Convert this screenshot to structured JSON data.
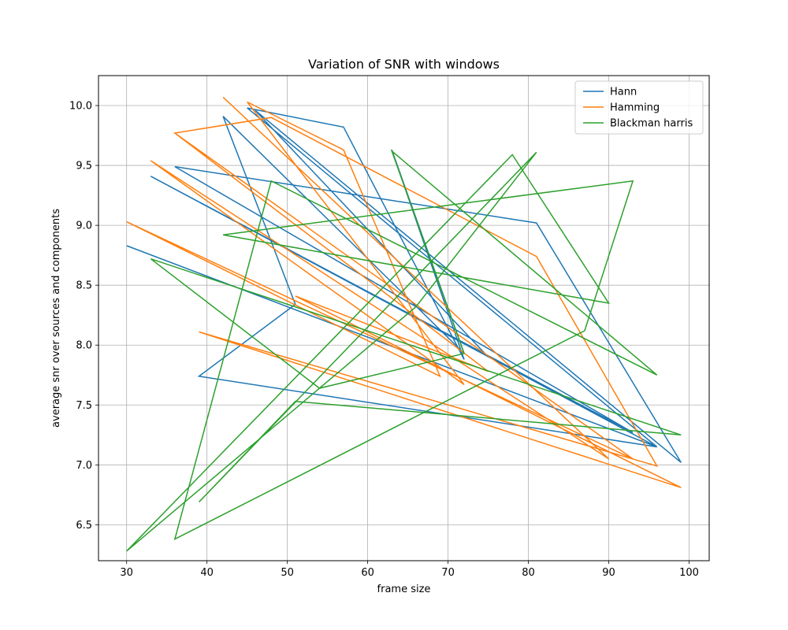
{
  "chart_data": {
    "type": "line",
    "title": "Variation of SNR with windows",
    "xlabel": "frame size",
    "ylabel": "average snr over sources and components",
    "xlim": [
      26.5,
      102.5
    ],
    "ylim": [
      6.2,
      10.25
    ],
    "xticks": [
      "30",
      "40",
      "50",
      "60",
      "70",
      "80",
      "90",
      "100"
    ],
    "yticks": [
      "6.5",
      "7.0",
      "7.5",
      "8.0",
      "8.5",
      "9.0",
      "9.5",
      "10.0"
    ],
    "grid": true,
    "legend_position": "top-right",
    "series": [
      {
        "name": "Hann",
        "color": "#1f77b4",
        "x": [
          30,
          96,
          45,
          57,
          72,
          63,
          72,
          42,
          51,
          39,
          96,
          33,
          93,
          36,
          81,
          99,
          46,
          75
        ],
        "y": [
          8.83,
          7.15,
          9.98,
          9.82,
          7.88,
          9.63,
          7.93,
          9.91,
          8.34,
          7.74,
          7.15,
          9.41,
          7.27,
          9.49,
          9.02,
          7.02,
          9.96,
          7.9
        ]
      },
      {
        "name": "Hamming",
        "color": "#ff7f0e",
        "x": [
          42,
          90,
          33,
          72,
          45,
          57,
          69,
          30,
          93,
          36,
          48,
          81,
          96,
          39,
          99,
          51,
          75,
          36
        ],
        "y": [
          10.07,
          7.05,
          9.54,
          7.67,
          10.03,
          9.63,
          7.74,
          9.03,
          7.05,
          9.77,
          9.9,
          8.74,
          6.99,
          8.11,
          6.81,
          8.41,
          7.78,
          9.77
        ]
      },
      {
        "name": "Blackman harris",
        "color": "#2ca02c",
        "x": [
          33,
          99,
          51,
          39,
          81,
          66,
          30,
          78,
          90,
          42,
          93,
          87,
          36,
          48,
          96,
          63,
          72,
          54,
          33
        ],
        "y": [
          8.72,
          7.25,
          7.53,
          6.69,
          9.61,
          8.32,
          6.28,
          9.59,
          8.35,
          8.92,
          9.37,
          8.12,
          6.38,
          9.37,
          7.75,
          9.62,
          7.93,
          7.64,
          8.72
        ]
      }
    ]
  }
}
